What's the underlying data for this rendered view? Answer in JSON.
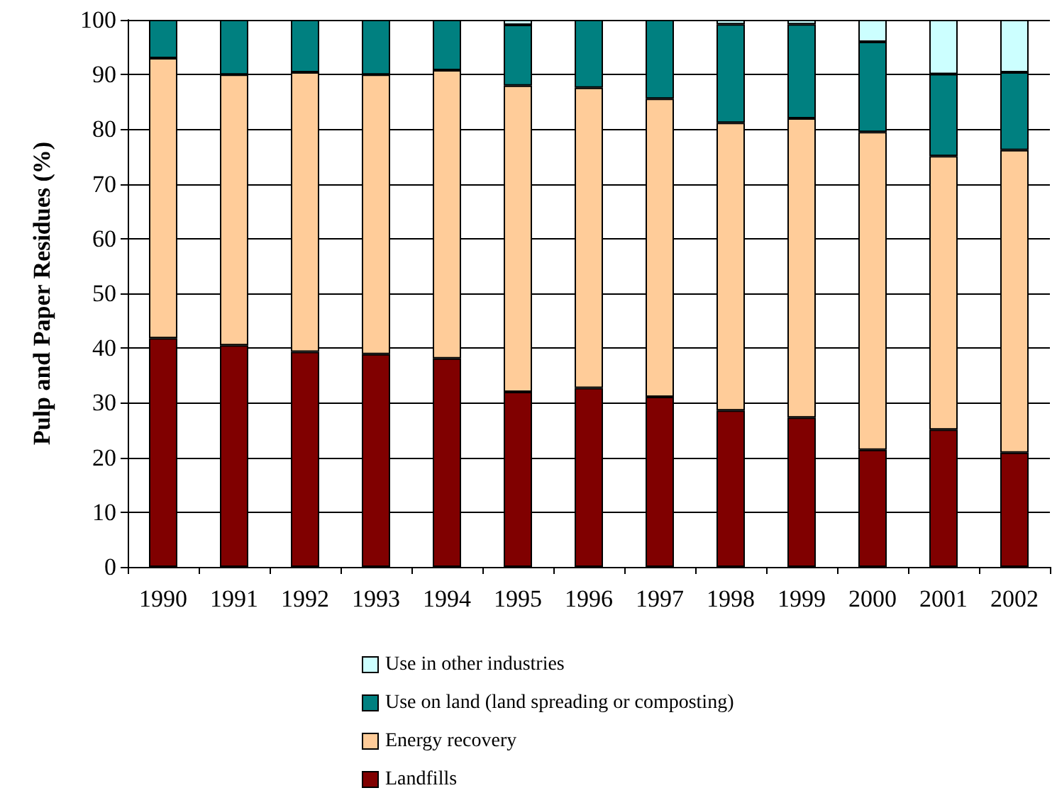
{
  "chart_data": {
    "type": "bar",
    "stacked": true,
    "ylabel": "Pulp and Paper Residues (%)",
    "categories": [
      "1990",
      "1991",
      "1992",
      "1993",
      "1994",
      "1995",
      "1996",
      "1997",
      "1998",
      "1999",
      "2000",
      "2001",
      "2002"
    ],
    "series": [
      {
        "name": "Landfills",
        "color": "#800000",
        "values": [
          41.8,
          40.5,
          39.3,
          38.9,
          38.1,
          32,
          32.7,
          31.1,
          28.6,
          27.3,
          21.4,
          25.1,
          20.9
        ]
      },
      {
        "name": "Energy recovery",
        "color": "#ffcc99",
        "values": [
          51.2,
          49.5,
          51.1,
          51.1,
          52.7,
          56,
          54.9,
          54.5,
          52.6,
          54.7,
          58.1,
          50,
          55.3
        ]
      },
      {
        "name": "Use on land (land spreading or composting)",
        "color": "#008080",
        "values": [
          7,
          10,
          9.6,
          10,
          9.2,
          11.1,
          12.4,
          14.4,
          18,
          17.2,
          16.5,
          15,
          14.2
        ]
      },
      {
        "name": "Use in other industries",
        "color": "#ccffff",
        "values": [
          0,
          0,
          0,
          0,
          0,
          0.9,
          0,
          0,
          0.8,
          0.8,
          4,
          9.9,
          9.6
        ]
      }
    ],
    "ylim": [
      0,
      100
    ],
    "yticks": [
      0,
      10,
      20,
      30,
      40,
      50,
      60,
      70,
      80,
      90,
      100
    ],
    "grid": "y",
    "legend": "bottom"
  }
}
